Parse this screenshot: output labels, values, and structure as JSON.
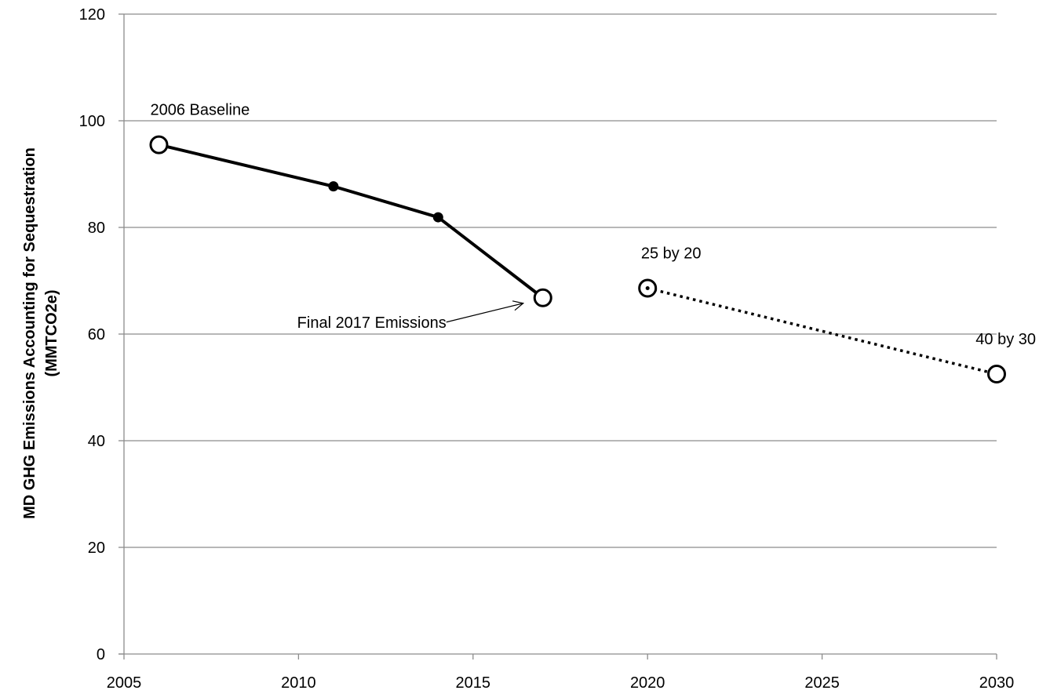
{
  "chart_data": {
    "type": "line",
    "title": "",
    "xlabel": "",
    "ylabel": "MD GHG Emissions Accounting for Sequestration",
    "ylabel_unit": "(MMTCO2e)",
    "xlim": [
      2005,
      2030
    ],
    "ylim": [
      0,
      120
    ],
    "xticks": [
      2005,
      2010,
      2015,
      2020,
      2025,
      2030
    ],
    "yticks": [
      0,
      20,
      40,
      60,
      80,
      100,
      120
    ],
    "grid": "horizontal",
    "legend": "none",
    "series": [
      {
        "style": "solid",
        "color": "#000000",
        "points": [
          {
            "x": 2006,
            "y": 95.5,
            "marker": "open-circle"
          },
          {
            "x": 2011,
            "y": 87.7,
            "marker": "dot"
          },
          {
            "x": 2014,
            "y": 81.9,
            "marker": "dot"
          },
          {
            "x": 2017,
            "y": 66.8,
            "marker": "open-circle"
          }
        ]
      },
      {
        "style": "dotted",
        "color": "#000000",
        "points": [
          {
            "x": 2020,
            "y": 68.6,
            "marker": "open-circle-dot"
          },
          {
            "x": 2030,
            "y": 52.5,
            "marker": "open-circle"
          }
        ]
      }
    ],
    "annotations": [
      {
        "text": "2006 Baseline",
        "x": 2006,
        "y": 95.5,
        "position": "above"
      },
      {
        "text": "25 by 20",
        "x": 2020,
        "y": 68.6,
        "position": "above"
      },
      {
        "text": "40 by 30",
        "x": 2030,
        "y": 52.5,
        "position": "above"
      },
      {
        "text": "Final 2017 Emissions",
        "x": 2017,
        "y": 66.8,
        "position": "below-left",
        "arrow": true
      }
    ]
  }
}
